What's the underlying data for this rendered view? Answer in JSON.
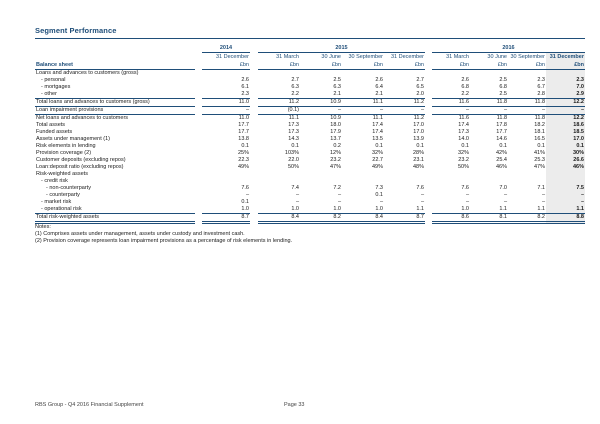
{
  "page": {
    "title": "Segment Performance",
    "footer_left": "RBS Group - Q4 2016 Financial Supplement",
    "footer_center": "Page 33"
  },
  "colors": {
    "accent": "#1F4E79",
    "shade": "#ECECEC"
  },
  "table": {
    "label_header": "Balance sheet",
    "unit": "£bn",
    "year_groups": [
      {
        "year": "2014",
        "dates": [
          "31 December"
        ]
      },
      {
        "year": "2015",
        "dates": [
          "31 March",
          "30 June",
          "30 September",
          "31 December"
        ]
      },
      {
        "year": "2016",
        "dates": [
          "31 March",
          "30 June",
          "30 September",
          "31 December"
        ]
      }
    ],
    "rows": [
      {
        "label": "Loans and advances to customers (gross)",
        "indent": 0,
        "style": "",
        "values": [
          "",
          "",
          "",
          "",
          "",
          "",
          "",
          "",
          ""
        ]
      },
      {
        "label": "- personal",
        "indent": 1,
        "style": "",
        "values": [
          "2.6",
          "2.7",
          "2.5",
          "2.6",
          "2.7",
          "2.6",
          "2.5",
          "2.3",
          "2.3"
        ]
      },
      {
        "label": "- mortgages",
        "indent": 1,
        "style": "",
        "values": [
          "6.1",
          "6.3",
          "6.3",
          "6.4",
          "6.5",
          "6.8",
          "6.8",
          "6.7",
          "7.0"
        ]
      },
      {
        "label": "- other",
        "indent": 1,
        "style": "",
        "values": [
          "2.3",
          "2.2",
          "2.1",
          "2.1",
          "2.0",
          "2.2",
          "2.5",
          "2.8",
          "2.9"
        ]
      },
      {
        "label": "Total loans and advances to customers (gross)",
        "indent": 0,
        "style": "total",
        "values": [
          "11.0",
          "11.2",
          "10.9",
          "11.1",
          "11.2",
          "11.6",
          "11.8",
          "11.8",
          "12.2"
        ]
      },
      {
        "label": "Loan impairment provisions",
        "indent": 0,
        "style": "ruled",
        "values": [
          "–",
          "(0.1)",
          "–",
          "–",
          "–",
          "–",
          "–",
          "–",
          "–"
        ]
      },
      {
        "label": "Net loans and advances to customers",
        "indent": 0,
        "style": "",
        "values": [
          "11.0",
          "11.1",
          "10.9",
          "11.1",
          "11.2",
          "11.6",
          "11.8",
          "11.8",
          "12.2"
        ]
      },
      {
        "label": "Total assets",
        "indent": 0,
        "style": "",
        "values": [
          "17.7",
          "17.3",
          "18.0",
          "17.4",
          "17.0",
          "17.4",
          "17.8",
          "18.2",
          "18.6"
        ]
      },
      {
        "label": "Funded assets",
        "indent": 0,
        "style": "",
        "values": [
          "17.7",
          "17.3",
          "17.9",
          "17.4",
          "17.0",
          "17.3",
          "17.7",
          "18.1",
          "18.5"
        ]
      },
      {
        "label": "Assets under management (1)",
        "indent": 0,
        "style": "",
        "values": [
          "13.8",
          "14.3",
          "13.7",
          "13.5",
          "13.9",
          "14.0",
          "14.6",
          "16.5",
          "17.0"
        ]
      },
      {
        "label": "Risk elements in lending",
        "indent": 0,
        "style": "",
        "values": [
          "0.1",
          "0.1",
          "0.2",
          "0.1",
          "0.1",
          "0.1",
          "0.1",
          "0.1",
          "0.1"
        ]
      },
      {
        "label": "Provision coverage (2)",
        "indent": 0,
        "style": "",
        "values": [
          "25%",
          "103%",
          "12%",
          "32%",
          "28%",
          "32%",
          "42%",
          "41%",
          "30%"
        ]
      },
      {
        "label": "Customer deposits (excluding repos)",
        "indent": 0,
        "style": "",
        "values": [
          "22.3",
          "22.0",
          "23.2",
          "22.7",
          "23.1",
          "23.2",
          "25.4",
          "25.3",
          "26.6"
        ]
      },
      {
        "label": "Loan:deposit ratio (excluding repos)",
        "indent": 0,
        "style": "",
        "values": [
          "49%",
          "50%",
          "47%",
          "49%",
          "48%",
          "50%",
          "46%",
          "47%",
          "46%"
        ]
      },
      {
        "label": "Risk-weighted assets",
        "indent": 0,
        "style": "",
        "values": [
          "",
          "",
          "",
          "",
          "",
          "",
          "",
          "",
          ""
        ]
      },
      {
        "label": "- credit risk",
        "indent": 1,
        "style": "",
        "values": [
          "",
          "",
          "",
          "",
          "",
          "",
          "",
          "",
          ""
        ]
      },
      {
        "label": "- non-counterparty",
        "indent": 2,
        "style": "",
        "values": [
          "7.6",
          "7.4",
          "7.2",
          "7.3",
          "7.6",
          "7.6",
          "7.0",
          "7.1",
          "7.5"
        ]
      },
      {
        "label": "- counterparty",
        "indent": 2,
        "style": "",
        "values": [
          "–",
          "–",
          "–",
          "0.1",
          "–",
          "–",
          "–",
          "–",
          "–"
        ]
      },
      {
        "label": "- market risk",
        "indent": 1,
        "style": "",
        "values": [
          "0.1",
          "–",
          "–",
          "–",
          "–",
          "–",
          "–",
          "–",
          "–"
        ]
      },
      {
        "label": "- operational risk",
        "indent": 1,
        "style": "",
        "values": [
          "1.0",
          "1.0",
          "1.0",
          "1.0",
          "1.1",
          "1.0",
          "1.1",
          "1.1",
          "1.1"
        ]
      },
      {
        "label": "Total risk-weighted assets",
        "indent": 0,
        "style": "grand_total",
        "values": [
          "8.7",
          "8.4",
          "8.2",
          "8.4",
          "8.7",
          "8.6",
          "8.1",
          "8.2",
          "8.8"
        ]
      }
    ]
  },
  "notes": {
    "heading": "Notes:",
    "items": [
      "(1) Comprises assets under management, assets under custody and investment cash.",
      "(2) Provision coverage represents loan impairment provisions as a percentage of risk elements in lending."
    ]
  }
}
